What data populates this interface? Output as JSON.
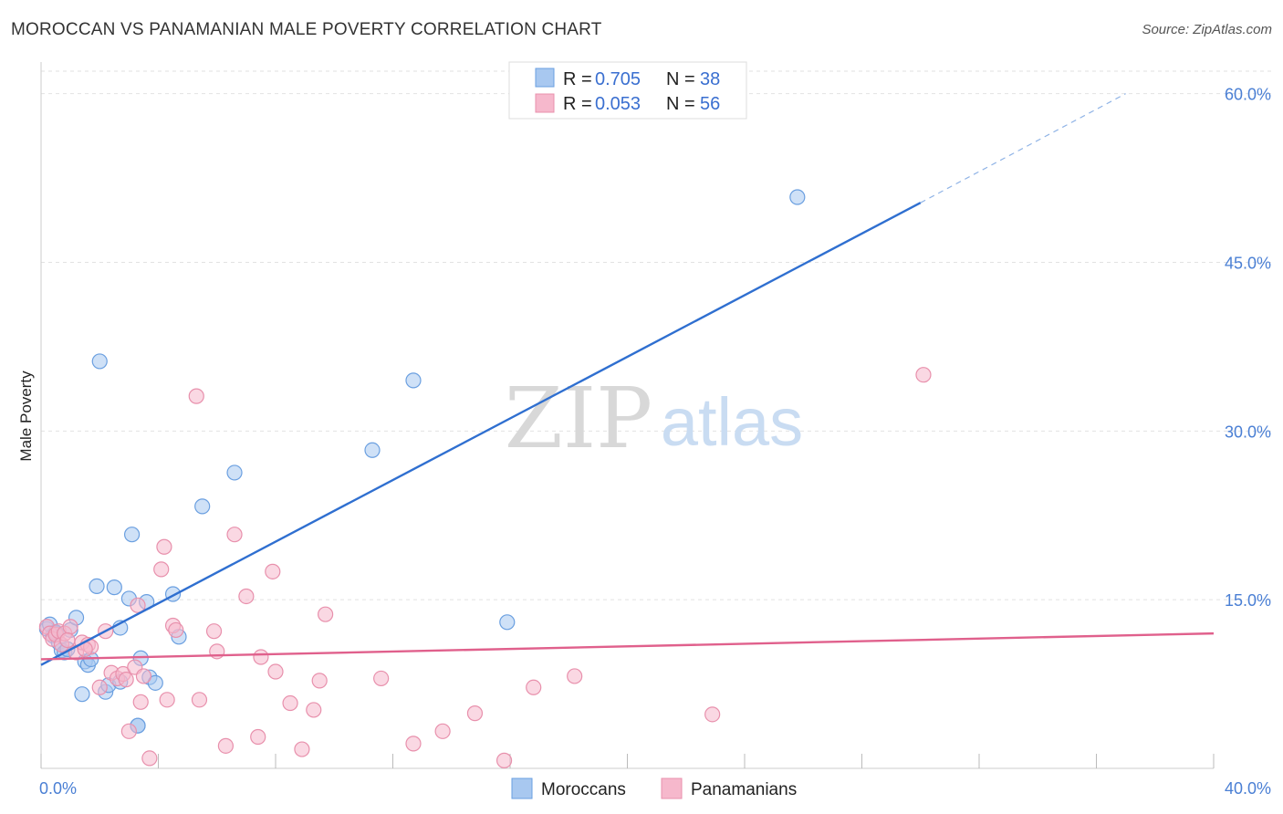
{
  "chart_data": {
    "type": "scatter",
    "title": "MOROCCAN VS PANAMANIAN MALE POVERTY CORRELATION CHART",
    "source": "Source: ZipAtlas.com",
    "xlabel": "",
    "ylabel": "Male Poverty",
    "xlim": [
      0,
      40
    ],
    "ylim": [
      0,
      62
    ],
    "x_tick_labels": [
      "0.0%",
      "40.0%"
    ],
    "y_tick_values": [
      15,
      30,
      45,
      60
    ],
    "y_tick_labels": [
      "15.0%",
      "30.0%",
      "45.0%",
      "60.0%"
    ],
    "watermark": {
      "zip": "ZIP",
      "atlas": "atlas"
    },
    "legend": [
      {
        "name": "Moroccans",
        "r_label": "R =",
        "r": "0.705",
        "n_label": "N =",
        "n": "38",
        "color": "#a8c8f0",
        "stroke": "#6a9fe0"
      },
      {
        "name": "Panamanians",
        "r_label": "R =",
        "r": "0.053",
        "n_label": "N =",
        "n": "56",
        "color": "#f6b8cc",
        "stroke": "#e890ac"
      }
    ],
    "series": [
      {
        "name": "Moroccans",
        "color": "#a8c8f0",
        "stroke": "#6a9fe0",
        "trend": {
          "x0": 0,
          "y0": 9.2,
          "x1": 30,
          "y1": 50.3,
          "dash_to_x": 37,
          "dash_to_y": 60.0,
          "color": "#2f6fd0"
        },
        "points": [
          [
            0.2,
            12.4
          ],
          [
            0.3,
            12.8
          ],
          [
            0.4,
            11.8
          ],
          [
            0.5,
            12.0
          ],
          [
            0.6,
            11.2
          ],
          [
            0.7,
            10.5
          ],
          [
            0.8,
            10.3
          ],
          [
            0.9,
            10.6
          ],
          [
            1.0,
            12.3
          ],
          [
            1.2,
            13.4
          ],
          [
            1.4,
            6.6
          ],
          [
            1.5,
            9.5
          ],
          [
            1.6,
            9.2
          ],
          [
            1.7,
            9.7
          ],
          [
            1.9,
            16.2
          ],
          [
            2.0,
            36.2
          ],
          [
            2.2,
            6.8
          ],
          [
            2.3,
            7.4
          ],
          [
            2.5,
            16.1
          ],
          [
            2.7,
            12.5
          ],
          [
            3.0,
            15.1
          ],
          [
            3.1,
            20.8
          ],
          [
            3.3,
            3.8
          ],
          [
            3.4,
            9.8
          ],
          [
            3.6,
            14.8
          ],
          [
            3.7,
            8.1
          ],
          [
            3.9,
            7.6
          ],
          [
            4.5,
            15.5
          ],
          [
            4.7,
            11.7
          ],
          [
            5.5,
            23.3
          ],
          [
            6.6,
            26.3
          ],
          [
            11.3,
            28.3
          ],
          [
            12.7,
            34.5
          ],
          [
            15.9,
            13.0
          ],
          [
            25.8,
            50.8
          ],
          [
            3.3,
            3.8
          ],
          [
            0.5,
            12.1
          ],
          [
            2.7,
            7.7
          ]
        ]
      },
      {
        "name": "Panamanians",
        "color": "#f6b8cc",
        "stroke": "#e890ac",
        "trend": {
          "x0": 0,
          "y0": 9.7,
          "x1": 40,
          "y1": 12.0,
          "color": "#e0608c"
        },
        "points": [
          [
            0.2,
            12.6
          ],
          [
            0.3,
            12.0
          ],
          [
            0.4,
            11.5
          ],
          [
            0.5,
            11.9
          ],
          [
            0.6,
            12.2
          ],
          [
            0.7,
            11.0
          ],
          [
            0.8,
            12.0
          ],
          [
            1.0,
            12.6
          ],
          [
            1.2,
            10.3
          ],
          [
            1.4,
            11.2
          ],
          [
            1.6,
            11.0
          ],
          [
            1.7,
            10.8
          ],
          [
            2.0,
            7.2
          ],
          [
            2.2,
            12.2
          ],
          [
            2.4,
            8.5
          ],
          [
            2.6,
            8.0
          ],
          [
            2.8,
            8.4
          ],
          [
            3.0,
            3.3
          ],
          [
            3.2,
            9.0
          ],
          [
            3.3,
            14.5
          ],
          [
            3.4,
            5.9
          ],
          [
            3.5,
            8.2
          ],
          [
            3.7,
            0.9
          ],
          [
            4.1,
            17.7
          ],
          [
            4.2,
            19.7
          ],
          [
            4.3,
            6.1
          ],
          [
            4.5,
            12.7
          ],
          [
            4.6,
            12.3
          ],
          [
            5.3,
            33.1
          ],
          [
            5.4,
            6.1
          ],
          [
            5.9,
            12.2
          ],
          [
            6.0,
            10.4
          ],
          [
            6.3,
            2.0
          ],
          [
            6.6,
            20.8
          ],
          [
            7.0,
            15.3
          ],
          [
            7.4,
            2.8
          ],
          [
            7.5,
            9.9
          ],
          [
            7.9,
            17.5
          ],
          [
            8.0,
            8.6
          ],
          [
            8.5,
            5.8
          ],
          [
            8.9,
            1.7
          ],
          [
            9.3,
            5.2
          ],
          [
            9.5,
            7.8
          ],
          [
            9.7,
            13.7
          ],
          [
            11.6,
            8.0
          ],
          [
            12.7,
            2.2
          ],
          [
            13.7,
            3.3
          ],
          [
            14.8,
            4.9
          ],
          [
            15.8,
            0.7
          ],
          [
            16.8,
            7.2
          ],
          [
            18.2,
            8.2
          ],
          [
            22.9,
            4.8
          ],
          [
            30.1,
            35.0
          ],
          [
            1.5,
            10.6
          ],
          [
            2.9,
            7.9
          ],
          [
            0.9,
            11.4
          ]
        ]
      }
    ]
  }
}
